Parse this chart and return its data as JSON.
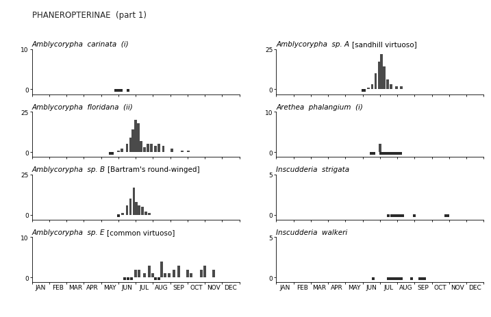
{
  "title": "PHANEROPTERINAE  (part 1)",
  "months": [
    "JAN",
    "FEB",
    "MAR",
    "APR",
    "MAY",
    "JUN",
    "JUL",
    "AUG",
    "SEP",
    "OCT",
    "NOV",
    "DEC"
  ],
  "subplots": [
    {
      "title_italic": "Amblycorypha  carinata  (i)",
      "title_bracket": "",
      "ylim": [
        0,
        10
      ],
      "ytick_top": 10,
      "bars": {},
      "dots": [
        5.35,
        5.5,
        5.65,
        6.05
      ]
    },
    {
      "title_italic": "Amblycorypha  floridana  (ii)",
      "title_bracket": "",
      "ylim": [
        0,
        25
      ],
      "ytick_top": 25,
      "bars": {
        "5.5": 1,
        "5.7": 2,
        "6.0": 5,
        "6.2": 9,
        "6.35": 14,
        "6.5": 20,
        "6.65": 18,
        "6.8": 7,
        "7.0": 3,
        "7.2": 5,
        "7.4": 5,
        "7.65": 4,
        "7.85": 5,
        "8.1": 4,
        "8.6": 2,
        "9.2": 1,
        "9.55": 1
      },
      "dots": [
        5.05,
        5.15
      ]
    },
    {
      "title_italic": "Amblycorypha  sp. B",
      "title_bracket": "[Bartram's round-winged]",
      "ylim": [
        0,
        25
      ],
      "ytick_top": 25,
      "bars": {
        "5.75": 1,
        "6.0": 6,
        "6.2": 10,
        "6.4": 17,
        "6.55": 8,
        "6.7": 6,
        "6.9": 5,
        "7.1": 2,
        "7.3": 1
      },
      "dots": [
        5.5
      ]
    },
    {
      "title_italic": "Amblycorypha  sp. E",
      "title_bracket": "[common virtuoso]",
      "ylim": [
        0,
        10
      ],
      "ytick_top": 10,
      "bars": {
        "6.5": 2,
        "6.7": 2,
        "7.0": 1,
        "7.3": 3,
        "7.5": 1,
        "8.0": 4,
        "8.2": 1,
        "8.45": 1,
        "8.7": 2,
        "9.0": 3,
        "9.5": 2,
        "9.7": 1,
        "10.3": 2,
        "10.5": 3,
        "11.0": 2
      },
      "dots": [
        5.85,
        6.05,
        6.25,
        7.65,
        7.85
      ]
    }
  ],
  "subplots_right": [
    {
      "title_italic": "Amblycorypha  sp. A",
      "title_bracket": "[sandhill virtuoso]",
      "ylim": [
        0,
        25
      ],
      "ytick_top": 25,
      "bars": {
        "5.85": 1,
        "6.05": 3,
        "6.25": 10,
        "6.45": 17,
        "6.6": 22,
        "6.75": 14,
        "6.95": 6,
        "7.15": 3,
        "7.45": 2,
        "7.75": 2
      },
      "dots": [
        5.5,
        5.6
      ]
    },
    {
      "title_italic": "Arethea  phalangium  (i)",
      "title_bracket": "",
      "ylim": [
        0,
        10
      ],
      "ytick_top": 10,
      "bars": {
        "6.5": 2
      },
      "dots": [
        6.0,
        6.15,
        6.55,
        6.7,
        6.85,
        7.0,
        7.15,
        7.3,
        7.45,
        7.55,
        7.7
      ]
    },
    {
      "title_italic": "Inscudderia  strigata",
      "title_bracket": "",
      "ylim": [
        0,
        5
      ],
      "ytick_top": 5,
      "bars": {},
      "dots": [
        7.0,
        7.2,
        7.35,
        7.5,
        7.65,
        7.8,
        8.5,
        10.3,
        10.45
      ]
    },
    {
      "title_italic": "Inscudderia  walkeri",
      "title_bracket": "",
      "ylim": [
        0,
        5
      ],
      "ytick_top": 5,
      "bars": {},
      "dots": [
        6.1,
        7.0,
        7.15,
        7.3,
        7.45,
        7.6,
        7.75,
        8.35,
        8.8,
        8.95,
        9.1
      ]
    }
  ],
  "bar_color": "#4a4a4a",
  "dot_color": "#2a2a2a",
  "bg_color": "#ffffff",
  "fig_bg": "#ffffff",
  "title_fontsize": 8.5,
  "subplot_title_fontsize": 7.5,
  "tick_fontsize": 6.5
}
